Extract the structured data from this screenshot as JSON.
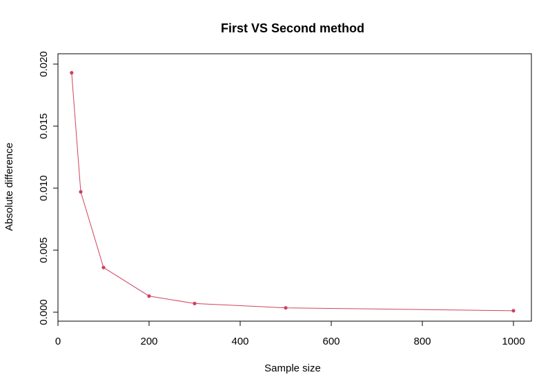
{
  "chart_data": {
    "type": "line",
    "title": "First VS Second method",
    "xlabel": "Sample size",
    "ylabel": "Absolute difference",
    "xlim": [
      0,
      1000
    ],
    "ylim": [
      0,
      0.02
    ],
    "x_ticks": [
      0,
      200,
      400,
      600,
      800,
      1000
    ],
    "x_tick_labels": [
      "0",
      "200",
      "400",
      "600",
      "800",
      "1000"
    ],
    "y_ticks": [
      0,
      0.005,
      0.01,
      0.015,
      0.02
    ],
    "y_tick_labels": [
      "0.000",
      "0.005",
      "0.010",
      "0.015",
      "0.020"
    ],
    "grid": false,
    "series": [
      {
        "color": "#d1405e",
        "x": [
          30,
          50,
          100,
          200,
          300,
          500,
          1000
        ],
        "y": [
          0.0193,
          0.0097,
          0.0036,
          0.0013,
          0.0007,
          0.00035,
          0.00012
        ]
      }
    ]
  }
}
